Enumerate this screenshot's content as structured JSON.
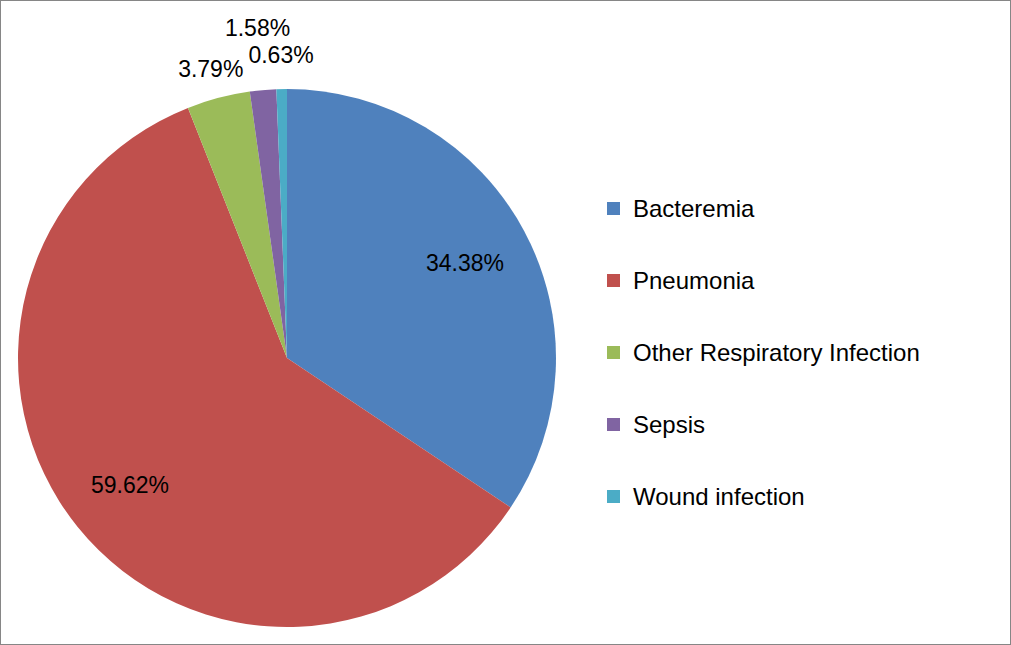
{
  "chart_data": {
    "type": "pie",
    "categories": [
      "Bacteremia",
      "Pneumonia",
      "Other Respiratory Infection",
      "Sepsis",
      "Wound infection"
    ],
    "values": [
      34.38,
      59.62,
      3.79,
      1.58,
      0.63
    ],
    "value_labels": [
      "34.38%",
      "59.62%",
      "3.79%",
      "1.58%",
      "0.63%"
    ],
    "colors": [
      "#4f81bd",
      "#c0504d",
      "#9bbb59",
      "#8064a2",
      "#4bacc6"
    ],
    "data_labels": true,
    "legend": "right"
  }
}
